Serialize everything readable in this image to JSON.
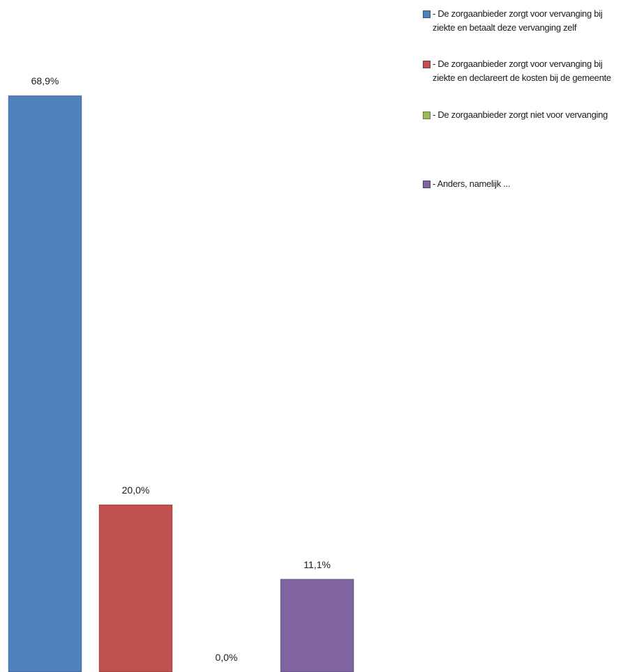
{
  "chart_data": {
    "type": "bar",
    "categories": [
      "- De zorgaanbieder zorgt voor vervanging bij\nziekte en betaalt deze vervanging zelf",
      "- De zorgaanbieder zorgt voor vervanging bij\nziekte en declareert de kosten bij de gemeente",
      "- De zorgaanbieder zorgt niet voor vervanging",
      "- Anders, namelijk ..."
    ],
    "values": [
      68.9,
      20.0,
      0.0,
      11.1
    ],
    "data_labels": [
      "68,9%",
      "20,0%",
      "0,0%",
      "11,1%"
    ],
    "colors": [
      "#4F81BD",
      "#C0504D",
      "#9BBB59",
      "#8064A2"
    ],
    "unit": "%",
    "ylim": [
      0,
      80
    ],
    "grid": false,
    "legend_position": "top-right",
    "title": "",
    "xlabel": "",
    "ylabel": ""
  }
}
